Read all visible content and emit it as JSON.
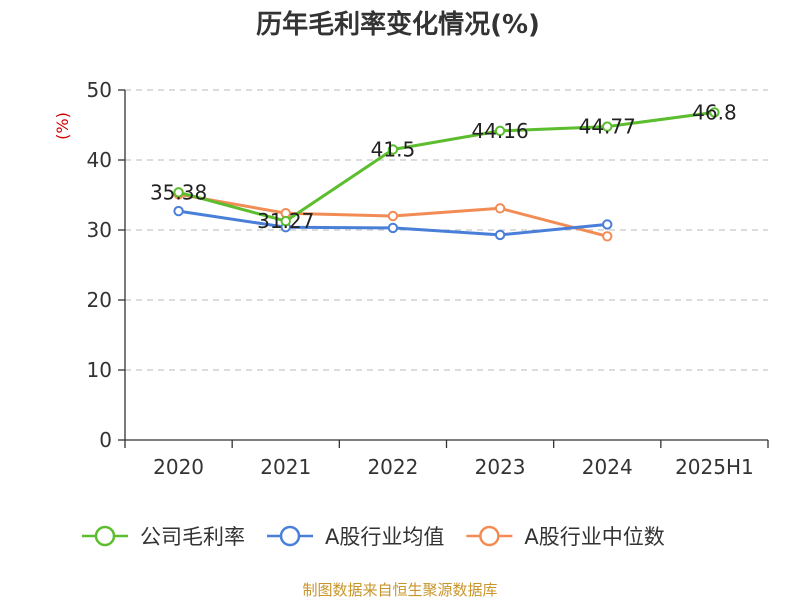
{
  "chart_data": {
    "type": "line",
    "title": "历年毛利率变化情况(%)",
    "xlabel": "",
    "ylabel": "(%)",
    "ylim": [
      0,
      50
    ],
    "yticks": [
      0,
      10,
      20,
      30,
      40,
      50
    ],
    "categories": [
      "2020",
      "2021",
      "2022",
      "2023",
      "2024",
      "2025H1"
    ],
    "series": [
      {
        "name": "公司毛利率",
        "color": "#5cbd2e",
        "values": [
          35.38,
          31.27,
          41.5,
          44.16,
          44.77,
          46.8
        ],
        "labels": [
          "35.38",
          "31.27",
          "41.5",
          "44.16",
          "44.77",
          "46.8"
        ]
      },
      {
        "name": "A股行业均值",
        "color": "#4a7fd9",
        "values": [
          32.7,
          30.4,
          30.3,
          29.3,
          30.8,
          null
        ]
      },
      {
        "name": "A股行业中位数",
        "color": "#f28c54",
        "values": [
          35.1,
          32.4,
          32.0,
          33.1,
          29.1,
          null
        ]
      }
    ],
    "grid": true,
    "legend_position": "bottom"
  },
  "source_text": "制图数据来自恒生聚源数据库"
}
